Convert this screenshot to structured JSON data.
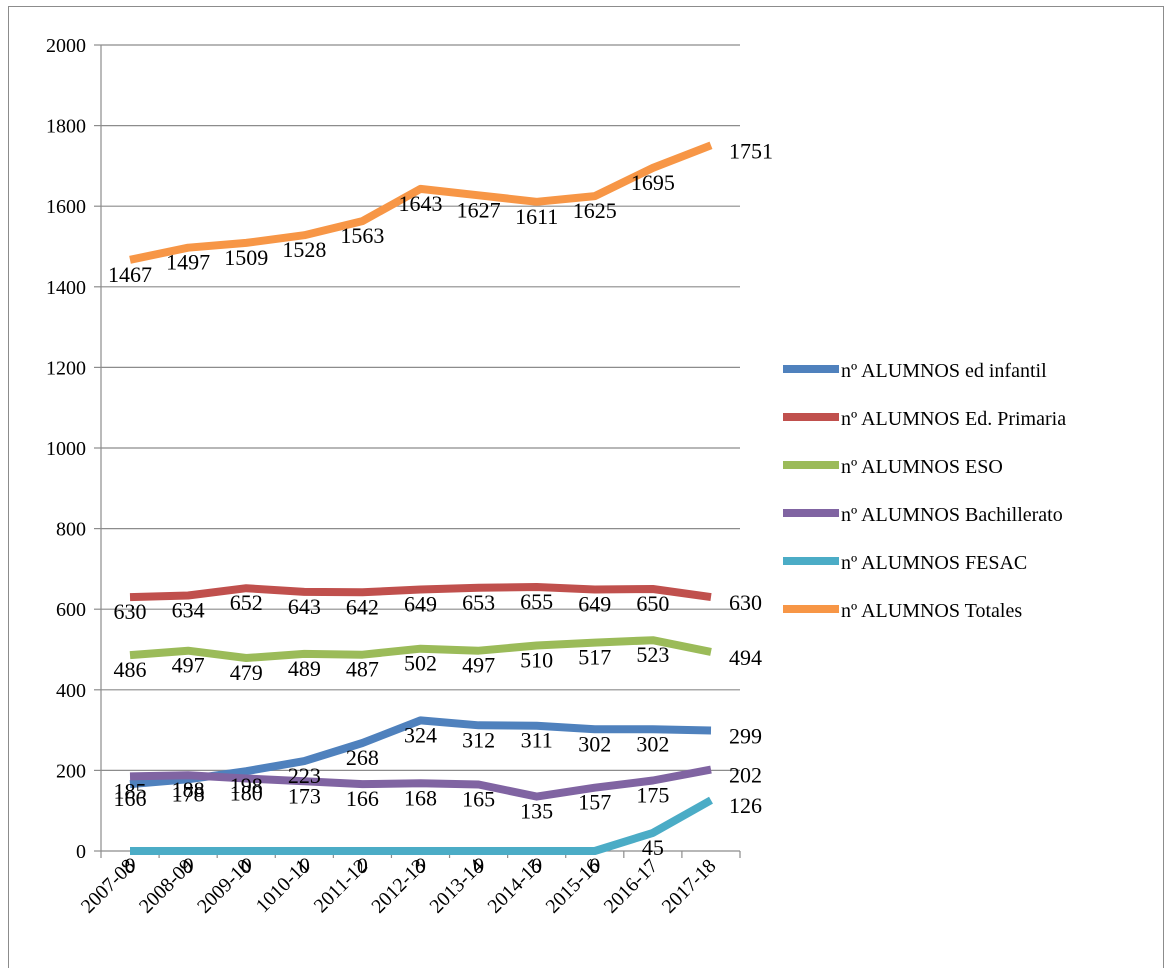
{
  "chart_data": {
    "type": "line",
    "categories": [
      "2007-08",
      "2008-09",
      "2009-10",
      "1010-11",
      "2011-12",
      "2012-13",
      "2013-14",
      "2014-15",
      "2015-16",
      "2016-17",
      "2017-18"
    ],
    "ylim": [
      0,
      2000
    ],
    "yticks": [
      0,
      200,
      400,
      600,
      800,
      1000,
      1200,
      1400,
      1600,
      1800,
      2000
    ],
    "grid": true,
    "legend_position": "right",
    "series": [
      {
        "name": "nº ALUMNOS ed infantil",
        "color": "#4f81bd",
        "values": [
          166,
          178,
          198,
          223,
          268,
          324,
          312,
          311,
          302,
          302,
          299
        ]
      },
      {
        "name": "nº ALUMNOS Ed. Primaria",
        "color": "#c0504d",
        "values": [
          630,
          634,
          652,
          643,
          642,
          649,
          653,
          655,
          649,
          650,
          630
        ]
      },
      {
        "name": "nº ALUMNOS ESO",
        "color": "#9bbb59",
        "values": [
          486,
          497,
          479,
          489,
          487,
          502,
          497,
          510,
          517,
          523,
          494
        ]
      },
      {
        "name": "nº ALUMNOS Bachillerato",
        "color": "#8064a2",
        "values": [
          185,
          188,
          180,
          173,
          166,
          168,
          165,
          135,
          157,
          175,
          202
        ]
      },
      {
        "name": "nº ALUMNOS FESAC",
        "color": "#4bacc6",
        "values": [
          0,
          0,
          0,
          0,
          0,
          0,
          0,
          0,
          0,
          45,
          126
        ]
      },
      {
        "name": "nº ALUMNOS Totales",
        "color": "#f79646",
        "values": [
          1467,
          1497,
          1509,
          1528,
          1563,
          1643,
          1627,
          1611,
          1625,
          1695,
          1751
        ]
      }
    ]
  }
}
